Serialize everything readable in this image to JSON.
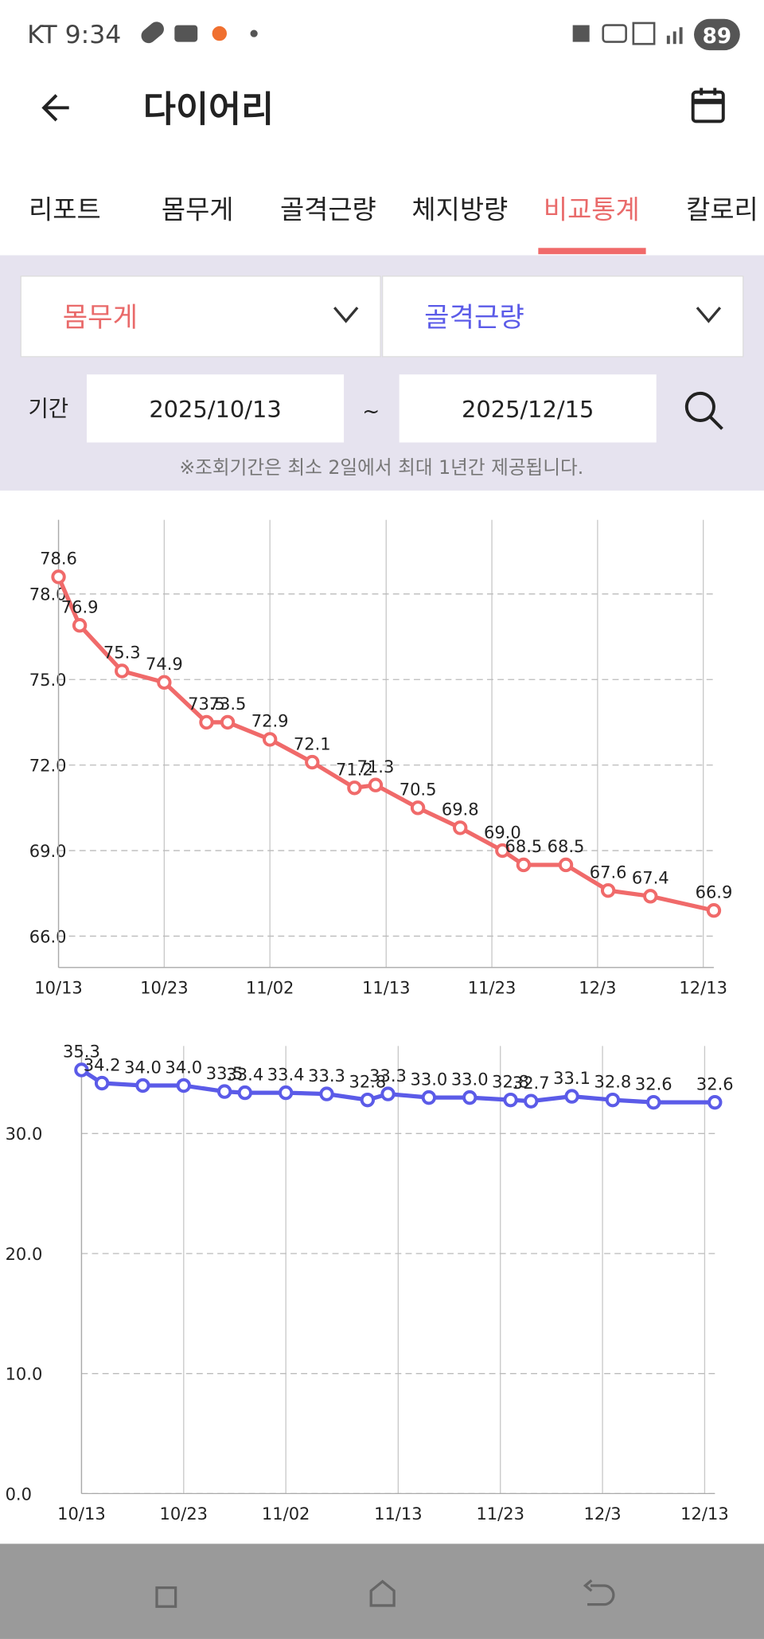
{
  "status_bar": {
    "carrier_time": "KT 9:34",
    "battery": "89"
  },
  "header": {
    "title": "다이어리"
  },
  "tabs": [
    "리포트",
    "몸무게",
    "골격근량",
    "체지방량",
    "비교통계",
    "칼로리"
  ],
  "active_tab": 4,
  "selectors": [
    "몸무게",
    "골격근량"
  ],
  "period": {
    "label": "기간",
    "start": "2025/10/13",
    "separator": "~",
    "end": "2025/12/15"
  },
  "note": "※조회기간은 최소 2일에서 최대 1년간 제공됩니다.",
  "chart_data": [
    {
      "type": "line",
      "color": "#f06a6a",
      "x": [
        "10/13",
        "10/15",
        "10/19",
        "10/23",
        "10/27",
        "10/29",
        "11/02",
        "11/06",
        "11/10",
        "11/12",
        "11/16",
        "11/20",
        "11/24",
        "11/26",
        "11/30",
        "12/04",
        "12/08",
        "12/14"
      ],
      "values": [
        78.6,
        76.9,
        75.3,
        74.9,
        73.5,
        73.5,
        72.9,
        72.1,
        71.2,
        71.3,
        70.5,
        69.8,
        69.0,
        68.5,
        68.5,
        67.6,
        67.4,
        66.9
      ],
      "value_labels": [
        "78.6",
        "76.9",
        "75.3",
        "74.9",
        "73.5",
        "73.5",
        "72.9",
        "72.1",
        "71.2",
        "71.3",
        "70.5",
        "69.8",
        "69.0",
        "68.5",
        "68.5",
        "67.6",
        "67.4",
        "66.9"
      ],
      "xlim": [
        "10/13",
        "12/14"
      ],
      "xticks": [
        "10/13",
        "10/23",
        "11/02",
        "11/13",
        "11/23",
        "12/3",
        "12/13"
      ],
      "ylim": [
        64.9,
        80.6
      ],
      "yticks": [
        {
          "value": 66,
          "label": "66.0"
        },
        {
          "value": 69,
          "label": "69.0"
        },
        {
          "value": 72,
          "label": "72.0"
        },
        {
          "value": 75,
          "label": "75.0"
        },
        {
          "value": 78,
          "label": "78.0"
        }
      ],
      "grid": true
    },
    {
      "type": "line",
      "color": "#5b5be8",
      "x": [
        "10/13",
        "10/15",
        "10/19",
        "10/23",
        "10/27",
        "10/29",
        "11/02",
        "11/06",
        "11/10",
        "11/12",
        "11/16",
        "11/20",
        "11/24",
        "11/26",
        "11/30",
        "12/04",
        "12/08",
        "12/14"
      ],
      "values": [
        35.3,
        34.2,
        34.0,
        34.0,
        33.5,
        33.4,
        33.4,
        33.3,
        32.8,
        33.3,
        33.0,
        33.0,
        32.8,
        32.7,
        33.1,
        32.8,
        32.6,
        32.6
      ],
      "value_labels": [
        "35.3",
        "34.2",
        "34.0",
        "34.0",
        "33.5",
        "33.4",
        "33.4",
        "33.3",
        "32.8",
        "33.3",
        "33.0",
        "33.0",
        "32.8",
        "32.7",
        "33.1",
        "32.8",
        "32.6",
        "32.6"
      ],
      "xlim": [
        "10/13",
        "12/14"
      ],
      "xticks": [
        "10/13",
        "10/23",
        "11/02",
        "11/13",
        "11/23",
        "12/3",
        "12/13"
      ],
      "ylim": [
        0,
        37.3
      ],
      "yticks": [
        {
          "value": 0,
          "label": "0.0"
        },
        {
          "value": 10,
          "label": "10.0"
        },
        {
          "value": 20,
          "label": "20.0"
        },
        {
          "value": 30,
          "label": "30.0"
        }
      ],
      "grid": true
    }
  ]
}
